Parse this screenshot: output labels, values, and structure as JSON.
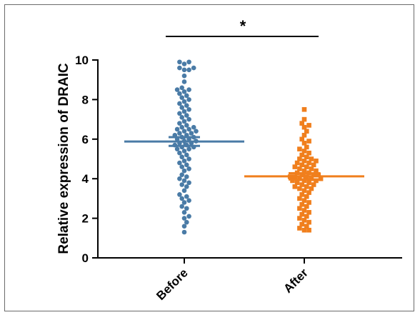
{
  "chart_data": {
    "type": "scatter",
    "subtype": "dot-plot",
    "title": "",
    "xlabel": "",
    "ylabel": "Relative expression of DRAIC",
    "ylim": [
      0,
      10
    ],
    "yticks": [
      0,
      2,
      4,
      6,
      8,
      10
    ],
    "categories": [
      "Before",
      "After"
    ],
    "grid": false,
    "significance": "*",
    "series": [
      {
        "category": "Before",
        "color": "#4a7ba6",
        "marker": "circle",
        "mean": 5.88,
        "error": 0.22,
        "values": [
          9.9,
          9.9,
          9.8,
          9.6,
          9.6,
          9.5,
          9.5,
          9.2,
          8.9,
          8.6,
          8.5,
          8.5,
          8.4,
          8.3,
          8.2,
          8.1,
          8.0,
          7.9,
          7.8,
          7.7,
          7.6,
          7.5,
          7.4,
          7.3,
          7.2,
          7.1,
          7.0,
          6.9,
          6.8,
          6.7,
          6.6,
          6.6,
          6.5,
          6.5,
          6.4,
          6.4,
          6.3,
          6.3,
          6.2,
          6.2,
          6.1,
          6.1,
          6.0,
          6.0,
          5.9,
          5.9,
          5.8,
          5.8,
          5.7,
          5.7,
          5.6,
          5.6,
          5.5,
          5.5,
          5.4,
          5.3,
          5.2,
          5.1,
          5.0,
          4.9,
          4.8,
          4.7,
          4.6,
          4.5,
          4.4,
          4.2,
          4.1,
          4.0,
          3.9,
          3.8,
          3.7,
          3.6,
          3.4,
          3.2,
          3.1,
          3.0,
          2.9,
          2.8,
          2.6,
          2.5,
          2.3,
          2.1,
          2.0,
          1.8,
          1.6,
          1.3
        ]
      },
      {
        "category": "After",
        "color": "#f07f1d",
        "marker": "square",
        "mean": 4.12,
        "error": 0.16,
        "values": [
          7.5,
          7.0,
          6.8,
          6.7,
          6.6,
          6.4,
          6.2,
          6.0,
          5.9,
          5.8,
          5.6,
          5.5,
          5.4,
          5.3,
          5.2,
          5.1,
          5.0,
          5.0,
          4.9,
          4.9,
          4.8,
          4.8,
          4.7,
          4.7,
          4.6,
          4.6,
          4.5,
          4.5,
          4.4,
          4.4,
          4.3,
          4.3,
          4.2,
          4.2,
          4.2,
          4.1,
          4.1,
          4.1,
          4.0,
          4.0,
          4.0,
          3.9,
          3.9,
          3.9,
          3.8,
          3.8,
          3.7,
          3.7,
          3.6,
          3.6,
          3.5,
          3.5,
          3.4,
          3.3,
          3.2,
          3.1,
          3.0,
          2.9,
          2.8,
          2.7,
          2.6,
          2.5,
          2.4,
          2.3,
          2.2,
          2.1,
          2.0,
          1.9,
          1.8,
          1.7,
          1.6,
          1.5,
          1.4,
          1.4
        ]
      }
    ]
  }
}
